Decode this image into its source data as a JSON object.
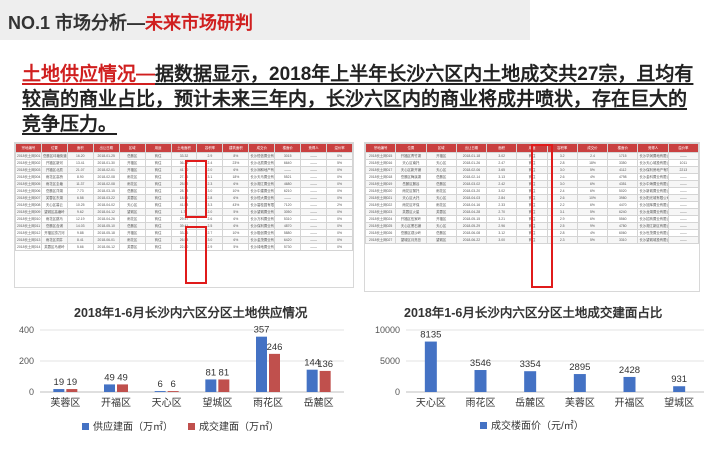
{
  "header": {
    "prefix": "NO.1 市场分析—",
    "highlight": "未来市场研判"
  },
  "headline": {
    "red": "土地供应情况—",
    "rest": "据数据显示，2018年上半年长沙六区内土地成交共27宗，且均有较高的商业占比，预计未来三年内，长沙六区内的商业将成井喷状，存在巨大的竞争压力。"
  },
  "left_table": {
    "header": [
      "宗地编号",
      "位置",
      "面积",
      "出让日期",
      "区域",
      "用途",
      "土地面积",
      "容积率",
      "建筑面积",
      "成交价",
      "楼面价",
      "竞得人",
      "溢价率"
    ],
    "rows": [
      [
        "2018长土网001",
        "岳麓区坪塘街道",
        "16.20",
        "2018-01-25",
        "岳麓区",
        "商住",
        "33.32",
        "2.9",
        "8%",
        "长沙恒信置业有限公司",
        "3015",
        "——",
        "0%"
      ],
      [
        "2018长土网002",
        "开福区新河",
        "13.41",
        "2018-01-30",
        "开福区",
        "商住",
        "36.29",
        "2.4",
        "23%",
        "长沙北辰置业有限公司",
        "6640",
        "——",
        "5%"
      ],
      [
        "2018长土网003",
        "开福区北辰",
        "21.07",
        "2018-02-01",
        "开福区",
        "商住",
        "41.70",
        "2.0",
        "6%",
        "长沙润和地产有限公司",
        "——",
        "——",
        "0%"
      ],
      [
        "2018长土网004",
        "雨花区高桥",
        "8.90",
        "2018-02-08",
        "雨花区",
        "商住",
        "27.16",
        "3.1",
        "18%",
        "长沙天马置业有限公司",
        "5521",
        "——",
        "0%"
      ],
      [
        "2018长土网005",
        "雨花区圭塘",
        "11.37",
        "2018-02-08",
        "雨花区",
        "商住",
        "25.52",
        "2.3",
        "6%",
        "长沙湘江置业有限公司",
        "4680",
        "——",
        "0%"
      ],
      [
        "2018长土网006",
        "岳麓区洋湖",
        "7.73",
        "2018-03-15",
        "岳麓区",
        "商住",
        "28.78",
        "3.0",
        "10%",
        "长沙中建置业有限公司",
        "6210",
        "——",
        "0%"
      ],
      [
        "2018长土网007",
        "芙蓉区东湖",
        "6.58",
        "2018-03-22",
        "芙蓉区",
        "商住",
        "18.55",
        "2.8",
        "6%",
        "长沙恒大置业有限公司",
        "——",
        "——",
        "0%"
      ],
      [
        "2018长土网008",
        "天心区暮云",
        "10.25",
        "2018-04-02",
        "天心区",
        "商住",
        "41.58",
        "3.3",
        "43%",
        "长沙碧桂园有限公司",
        "7120",
        "——",
        "2%"
      ],
      [
        "2018长土网009",
        "望城区高塘岭",
        "9.62",
        "2018-04-12",
        "望城区",
        "商住",
        "1.77",
        "2.0",
        "5%",
        "长沙望城置业有限公司",
        "3050",
        "——",
        "0%"
      ],
      [
        "2018长土网010",
        "雨花区跳马",
        "12.19",
        "2018-04-26",
        "雨花区",
        "商住",
        "29.57",
        "2.6",
        "6%",
        "长沙万科置业有限公司",
        "5310",
        "——",
        "0%"
      ],
      [
        "2018长土网011",
        "岳麓区含浦",
        "14.03",
        "2018-05-10",
        "岳麓区",
        "商住",
        "39.41",
        "2.5",
        "6%",
        "长沙保利置业有限公司",
        "4870",
        "——",
        "0%"
      ],
      [
        "2018长土网012",
        "开福区捞刀河",
        "9.88",
        "2018-05-18",
        "开福区",
        "商住",
        "33.26",
        "2.7",
        "10%",
        "长沙融创置业有限公司",
        "5880",
        "——",
        "0%"
      ],
      [
        "2018长土网013",
        "雨花区洞井",
        "8.41",
        "2018-06-01",
        "雨花区",
        "商住",
        "26.53",
        "3.0",
        "6%",
        "长沙金茂置业有限公司",
        "6420",
        "——",
        "0%"
      ],
      [
        "2018长土网014",
        "芙蓉区马坡岭",
        "5.66",
        "2018-06-12",
        "芙蓉区",
        "商住",
        "22.80",
        "2.9",
        "5%",
        "长沙绿地置业有限公司",
        "5730",
        "——",
        "0%"
      ]
    ]
  },
  "right_table": {
    "header": [
      "宗地编号",
      "位置",
      "区域",
      "出让日期",
      "面积",
      "用途",
      "容积率",
      "成交价",
      "楼面价",
      "竞得人",
      "溢价率"
    ],
    "rows": [
      [
        "2018长土网015",
        "开福区青竹湖",
        "开福区",
        "2018-01-18",
        "3.02",
        "商住",
        "3.2",
        "2.4",
        "1715",
        "长沙华润置地有限公司",
        "——"
      ],
      [
        "2018长土网016",
        "天心区南托",
        "天心区",
        "2018-01-26",
        "2.47",
        "商住",
        "2.8",
        "18%",
        "3350",
        "长沙天心城投有限公司",
        "1011"
      ],
      [
        "2018长土网017",
        "天心区新开铺",
        "天心区",
        "2018-02-06",
        "3.65",
        "商住",
        "3.0",
        "5%",
        "4112",
        "长沙保利房地产有限公司",
        "2213"
      ],
      [
        "2018长土网018",
        "岳麓区梅溪湖",
        "岳麓区",
        "2018-02-14",
        "3.13",
        "商住",
        "2.6",
        "4%",
        "4798",
        "长沙金科置业有限公司",
        "——"
      ],
      [
        "2018长土网019",
        "岳麓区麓谷",
        "岳麓区",
        "2018-03-02",
        "2.42",
        "商住",
        "3.0",
        "6%",
        "4351",
        "长沙中海置业有限公司",
        "——"
      ],
      [
        "2018长土网020",
        "雨花区黎托",
        "雨花区",
        "2018-03-20",
        "3.02",
        "商住",
        "2.4",
        "6%",
        "5020",
        "长沙新城置业有限公司",
        "——"
      ],
      [
        "2018长土网021",
        "天心区大托",
        "天心区",
        "2018-04-03",
        "2.84",
        "商住",
        "2.6",
        "10%",
        "3980",
        "长沙阳光城有限公司",
        "——"
      ],
      [
        "2018长土网022",
        "雨花区环保",
        "雨花区",
        "2018-04-16",
        "2.33",
        "商住",
        "2.2",
        "6%",
        "4470",
        "长沙旭辉置业有限公司",
        "——"
      ],
      [
        "2018长土网023",
        "芙蓉区火星",
        "芙蓉区",
        "2018-04-28",
        "2.70",
        "商住",
        "3.1",
        "5%",
        "6240",
        "长沙龙湖置业有限公司",
        "——"
      ],
      [
        "2018长土网024",
        "开福区伍家岭",
        "开福区",
        "2018-05-15",
        "3.21",
        "商住",
        "2.9",
        "6%",
        "5560",
        "长沙招商置业有限公司",
        "——"
      ],
      [
        "2018长土网025",
        "天心区黑石铺",
        "天心区",
        "2018-05-29",
        "2.96",
        "商住",
        "2.5",
        "9%",
        "4780",
        "长沙湘江新区有限公司",
        "——"
      ],
      [
        "2018长土网026",
        "岳麓区观沙岭",
        "岳麓区",
        "2018-06-08",
        "3.12",
        "商住",
        "2.8",
        "4%",
        "6060",
        "长沙世茂置业有限公司",
        "——"
      ],
      [
        "2018长土网027",
        "望城区月亮岛",
        "望城区",
        "2018-06-22",
        "3.00",
        "商住",
        "2.3",
        "5%",
        "3310",
        "长沙望城城投有限公司",
        "——"
      ]
    ]
  },
  "chart_data": [
    {
      "type": "bar",
      "title": "2018年1-6月长沙内六区分区土地供应情况",
      "categories": [
        "芙蓉区",
        "开福区",
        "天心区",
        "望城区",
        "雨花区",
        "岳麓区"
      ],
      "series": [
        {
          "name": "供应建面（万㎡）",
          "values": [
            19,
            49,
            6,
            81,
            357,
            144
          ],
          "color": "#4472c4"
        },
        {
          "name": "成交建面（万㎡）",
          "values": [
            19,
            49,
            6,
            81,
            246,
            136
          ],
          "color": "#c0504d"
        }
      ],
      "yticks": [
        "0",
        "200",
        "400"
      ],
      "ylim": [
        0,
        400
      ],
      "grid": true,
      "legend": "bottom"
    },
    {
      "type": "bar",
      "title": "2018年1-6月长沙内六区分区土地成交建面占比",
      "categories": [
        "天心区",
        "雨花区",
        "岳麓区",
        "芙蓉区",
        "开福区",
        "望城区"
      ],
      "series": [
        {
          "name": "成交楼面价（元/㎡）",
          "values": [
            8135,
            3546,
            3354,
            2895,
            2428,
            931
          ],
          "color": "#4472c4"
        }
      ],
      "yticks": [
        "0",
        "5000",
        "10000"
      ],
      "ylim": [
        0,
        10000
      ],
      "grid": true,
      "legend": "bottom"
    }
  ]
}
